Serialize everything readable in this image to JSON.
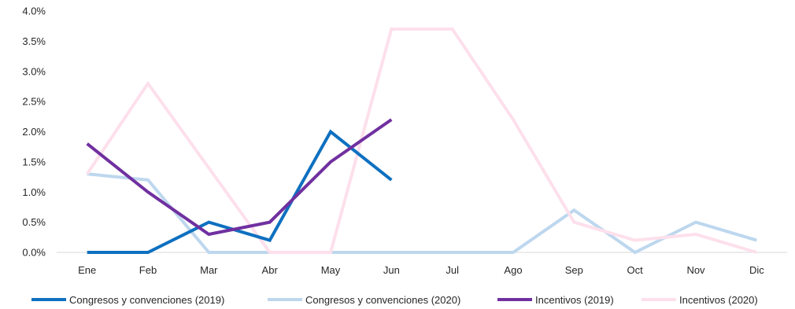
{
  "chart_data": {
    "type": "line",
    "title": "",
    "xlabel": "",
    "ylabel": "",
    "categories": [
      "Ene",
      "Feb",
      "Mar",
      "Abr",
      "May",
      "Jun",
      "Jul",
      "Ago",
      "Sep",
      "Oct",
      "Nov",
      "Dic"
    ],
    "y_ticks": [
      "0.0%",
      "0.5%",
      "1.0%",
      "1.5%",
      "2.0%",
      "2.5%",
      "3.0%",
      "3.5%",
      "4.0%"
    ],
    "ylim": [
      0,
      4.0
    ],
    "y_unit": "%",
    "grid": false,
    "legend_position": "bottom",
    "series": [
      {
        "name": "Congresos y convenciones (2019)",
        "color": "#0e70c0",
        "values": [
          0.0,
          0.0,
          0.5,
          0.2,
          2.0,
          1.2,
          null,
          null,
          null,
          null,
          null,
          null
        ]
      },
      {
        "name": "Congresos y convenciones (2020)",
        "color": "#bdd7ee",
        "values": [
          1.3,
          1.2,
          0.0,
          0.0,
          0.0,
          0.0,
          0.0,
          0.0,
          0.7,
          0.0,
          0.5,
          0.2
        ]
      },
      {
        "name": "Incentivos (2019)",
        "color": "#7030a0",
        "values": [
          1.8,
          1.0,
          0.3,
          0.5,
          1.5,
          2.2,
          null,
          null,
          null,
          null,
          null,
          null
        ]
      },
      {
        "name": "Incentivos (2020)",
        "color": "#fde0ec",
        "values": [
          1.3,
          2.8,
          1.4,
          0.0,
          0.0,
          3.7,
          3.7,
          2.2,
          0.5,
          0.2,
          0.3,
          0.0
        ]
      }
    ]
  }
}
